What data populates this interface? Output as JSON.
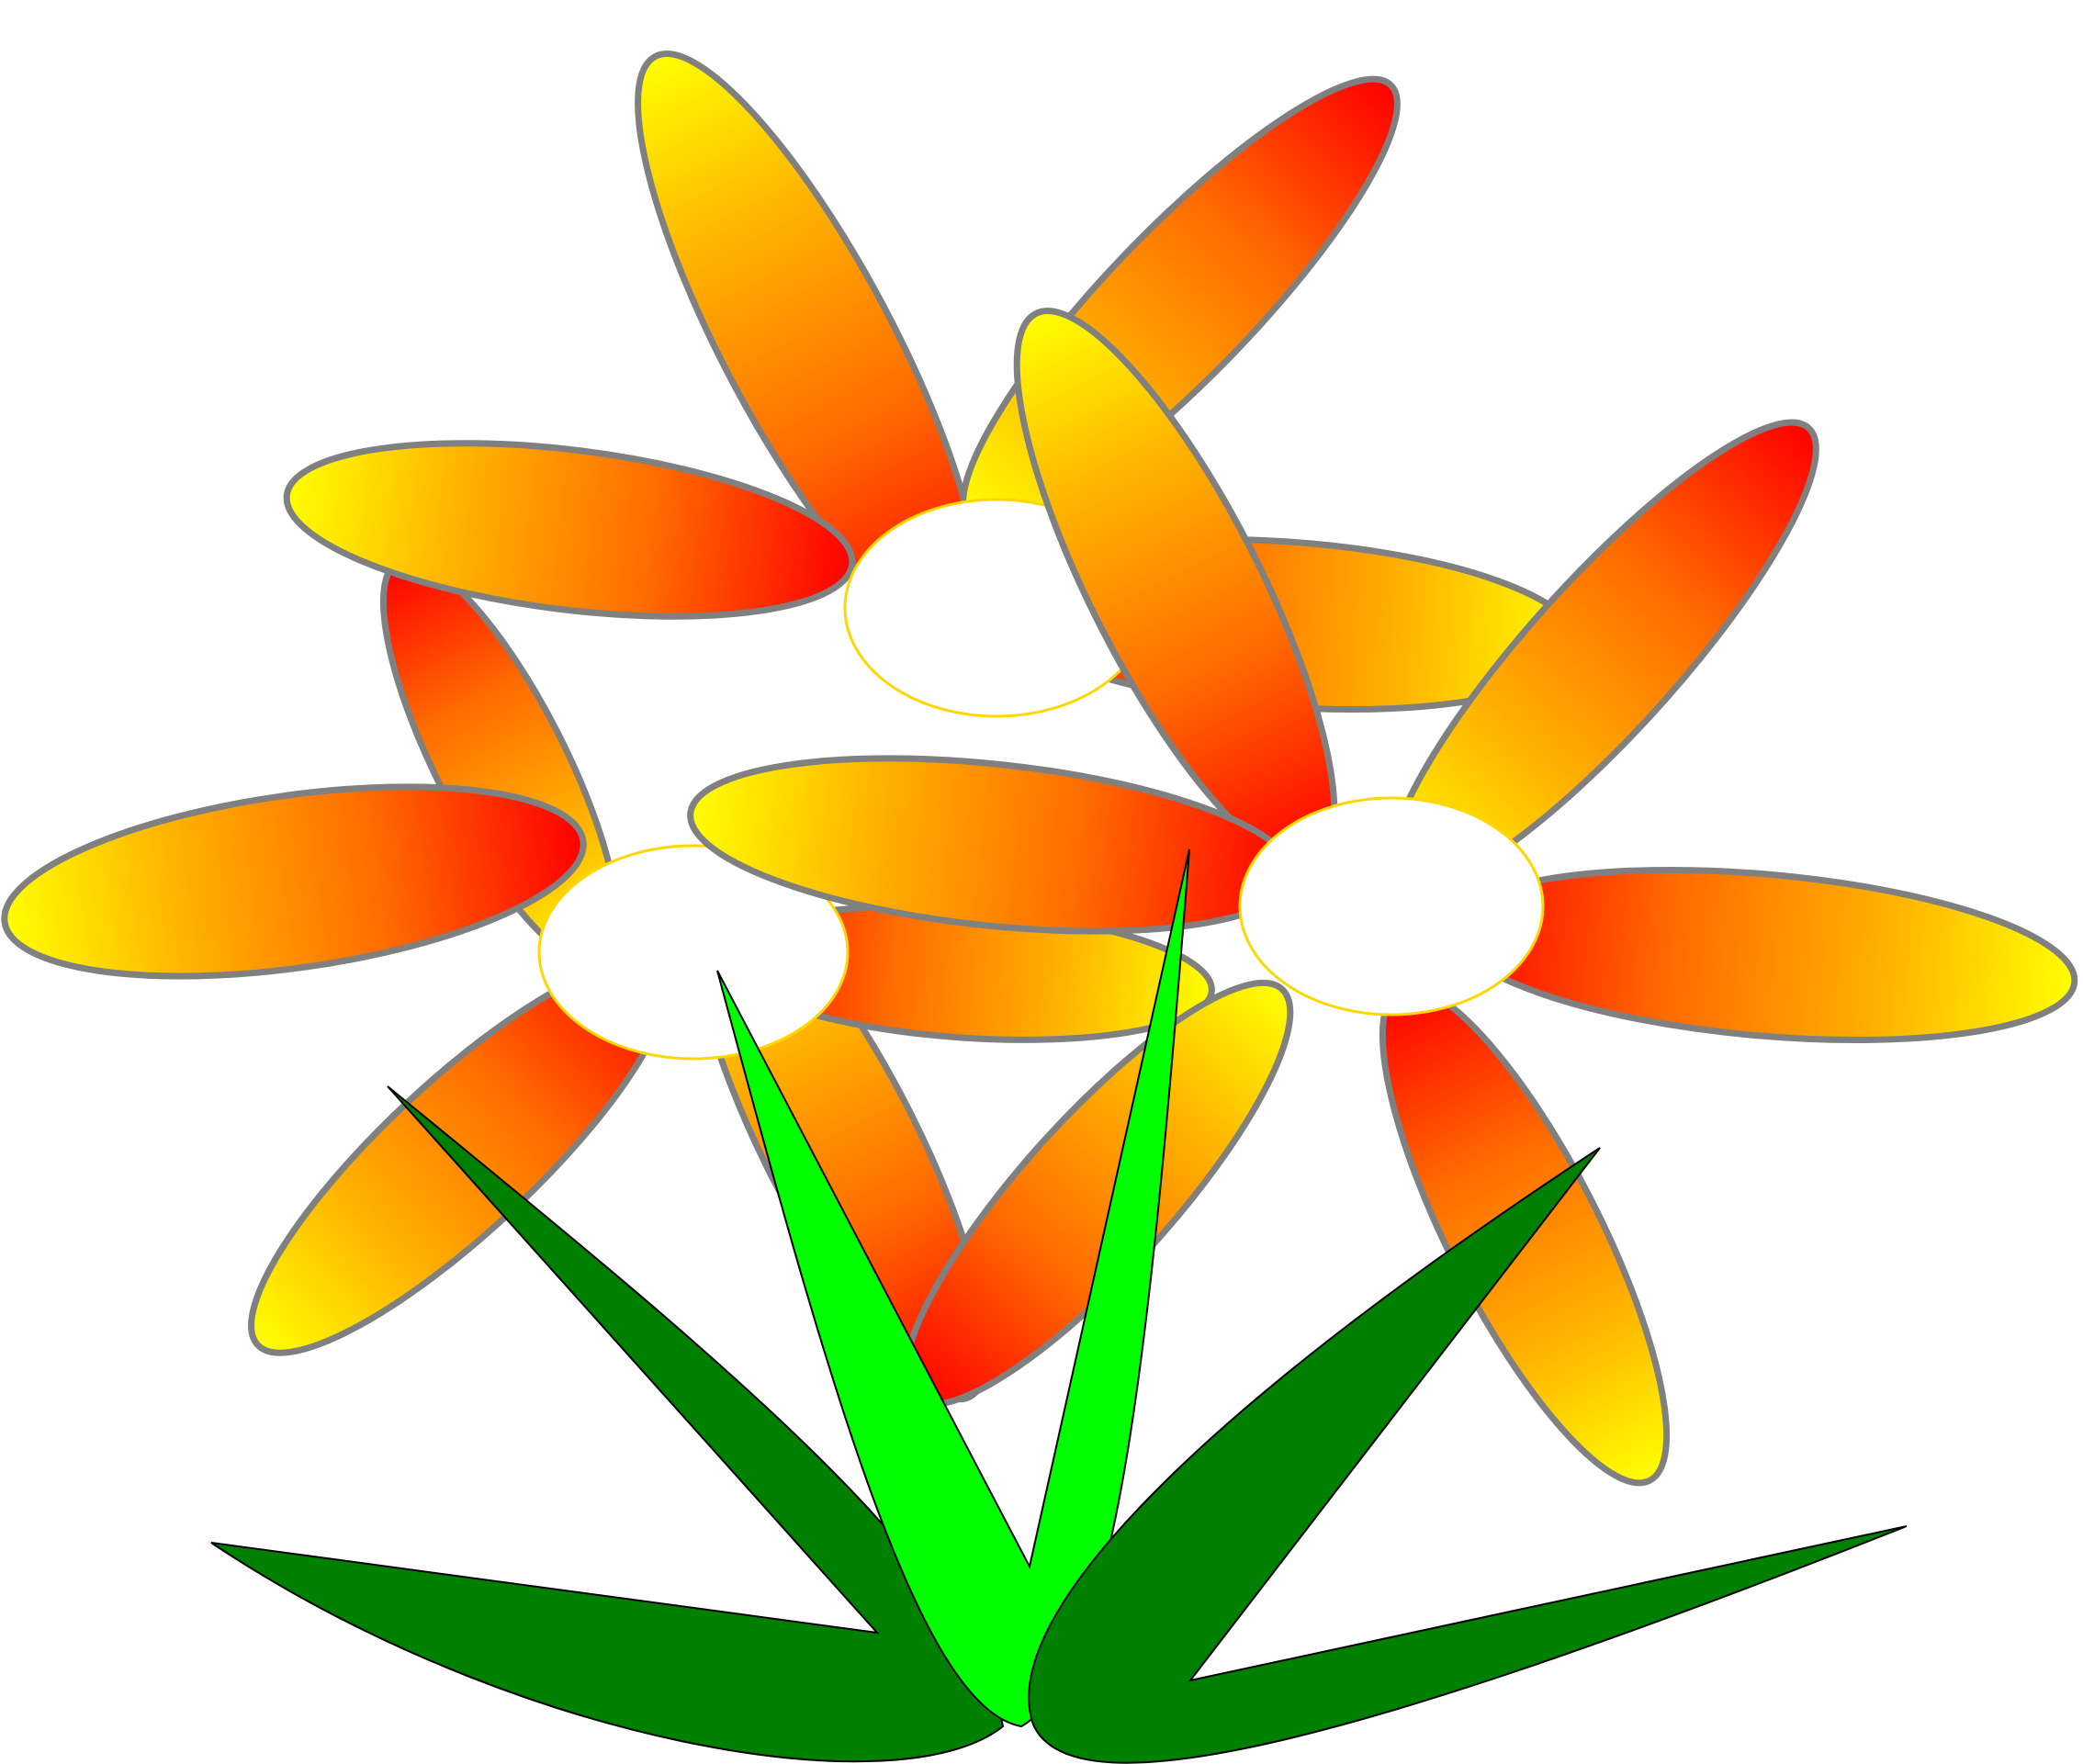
{
  "colors": {
    "background": "#ffffff",
    "petal_center": "#ff0000",
    "petal_mid": "#ff8c00",
    "petal_tip": "#ffff00",
    "petal_outline": "#808080",
    "flower_center_fill": "#ffffff",
    "flower_center_outline": "#ffd700",
    "leaf_dark": "#008000",
    "leaf_bright": "#00ff00",
    "leaf_outline": "#000000"
  },
  "flowers": [
    {
      "name": "flower-left",
      "petal_count": 5
    },
    {
      "name": "flower-top",
      "petal_count": 4
    },
    {
      "name": "flower-right",
      "petal_count": 5
    }
  ],
  "leaves": [
    {
      "name": "leaf-far-left",
      "color": "dark"
    },
    {
      "name": "leaf-left",
      "color": "dark"
    },
    {
      "name": "leaf-center",
      "color": "bright"
    },
    {
      "name": "leaf-right",
      "color": "dark"
    },
    {
      "name": "leaf-far-right",
      "color": "dark"
    }
  ]
}
